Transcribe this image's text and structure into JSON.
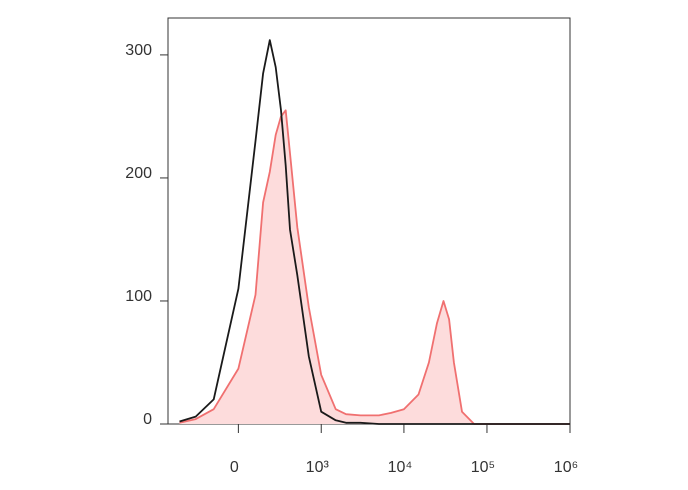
{
  "chart_data": {
    "type": "histogram-overlay",
    "x": [
      -500,
      -300,
      -150,
      0,
      100,
      150,
      200,
      250,
      300,
      350,
      400,
      500,
      700,
      1000,
      1500,
      2000,
      3000,
      5000,
      7000,
      10000,
      15000,
      20000,
      25000,
      30000,
      35000,
      40000,
      50000,
      70000,
      100000,
      1000000
    ],
    "series": [
      {
        "color": "#f07070",
        "fill": "#fddcdc",
        "values": [
          1,
          4,
          12,
          45,
          105,
          180,
          205,
          235,
          250,
          255,
          220,
          160,
          95,
          40,
          12,
          8,
          7,
          7,
          9,
          12,
          24,
          50,
          82,
          100,
          85,
          50,
          10,
          0,
          0,
          0
        ]
      },
      {
        "color": "#1a1a1a",
        "values": [
          2,
          6,
          20,
          110,
          230,
          285,
          312,
          290,
          255,
          210,
          158,
          121,
          55,
          10,
          3,
          1,
          1,
          0,
          0,
          0,
          0,
          0,
          0,
          0,
          0,
          0,
          0,
          0,
          0,
          0
        ]
      }
    ],
    "xscale": "arcsinh",
    "xscale_width": 203,
    "xlim": [
      -700,
      1000000
    ],
    "xticks": [
      0,
      {
        "value": 1000,
        "label": "10³"
      },
      {
        "value": 10000,
        "label": "10⁴"
      },
      {
        "value": 100000,
        "label": "10⁵"
      },
      {
        "value": 1000000,
        "label": "10⁶"
      }
    ],
    "ylim": [
      0,
      330
    ],
    "yticks": [
      0,
      100,
      200,
      300
    ]
  }
}
